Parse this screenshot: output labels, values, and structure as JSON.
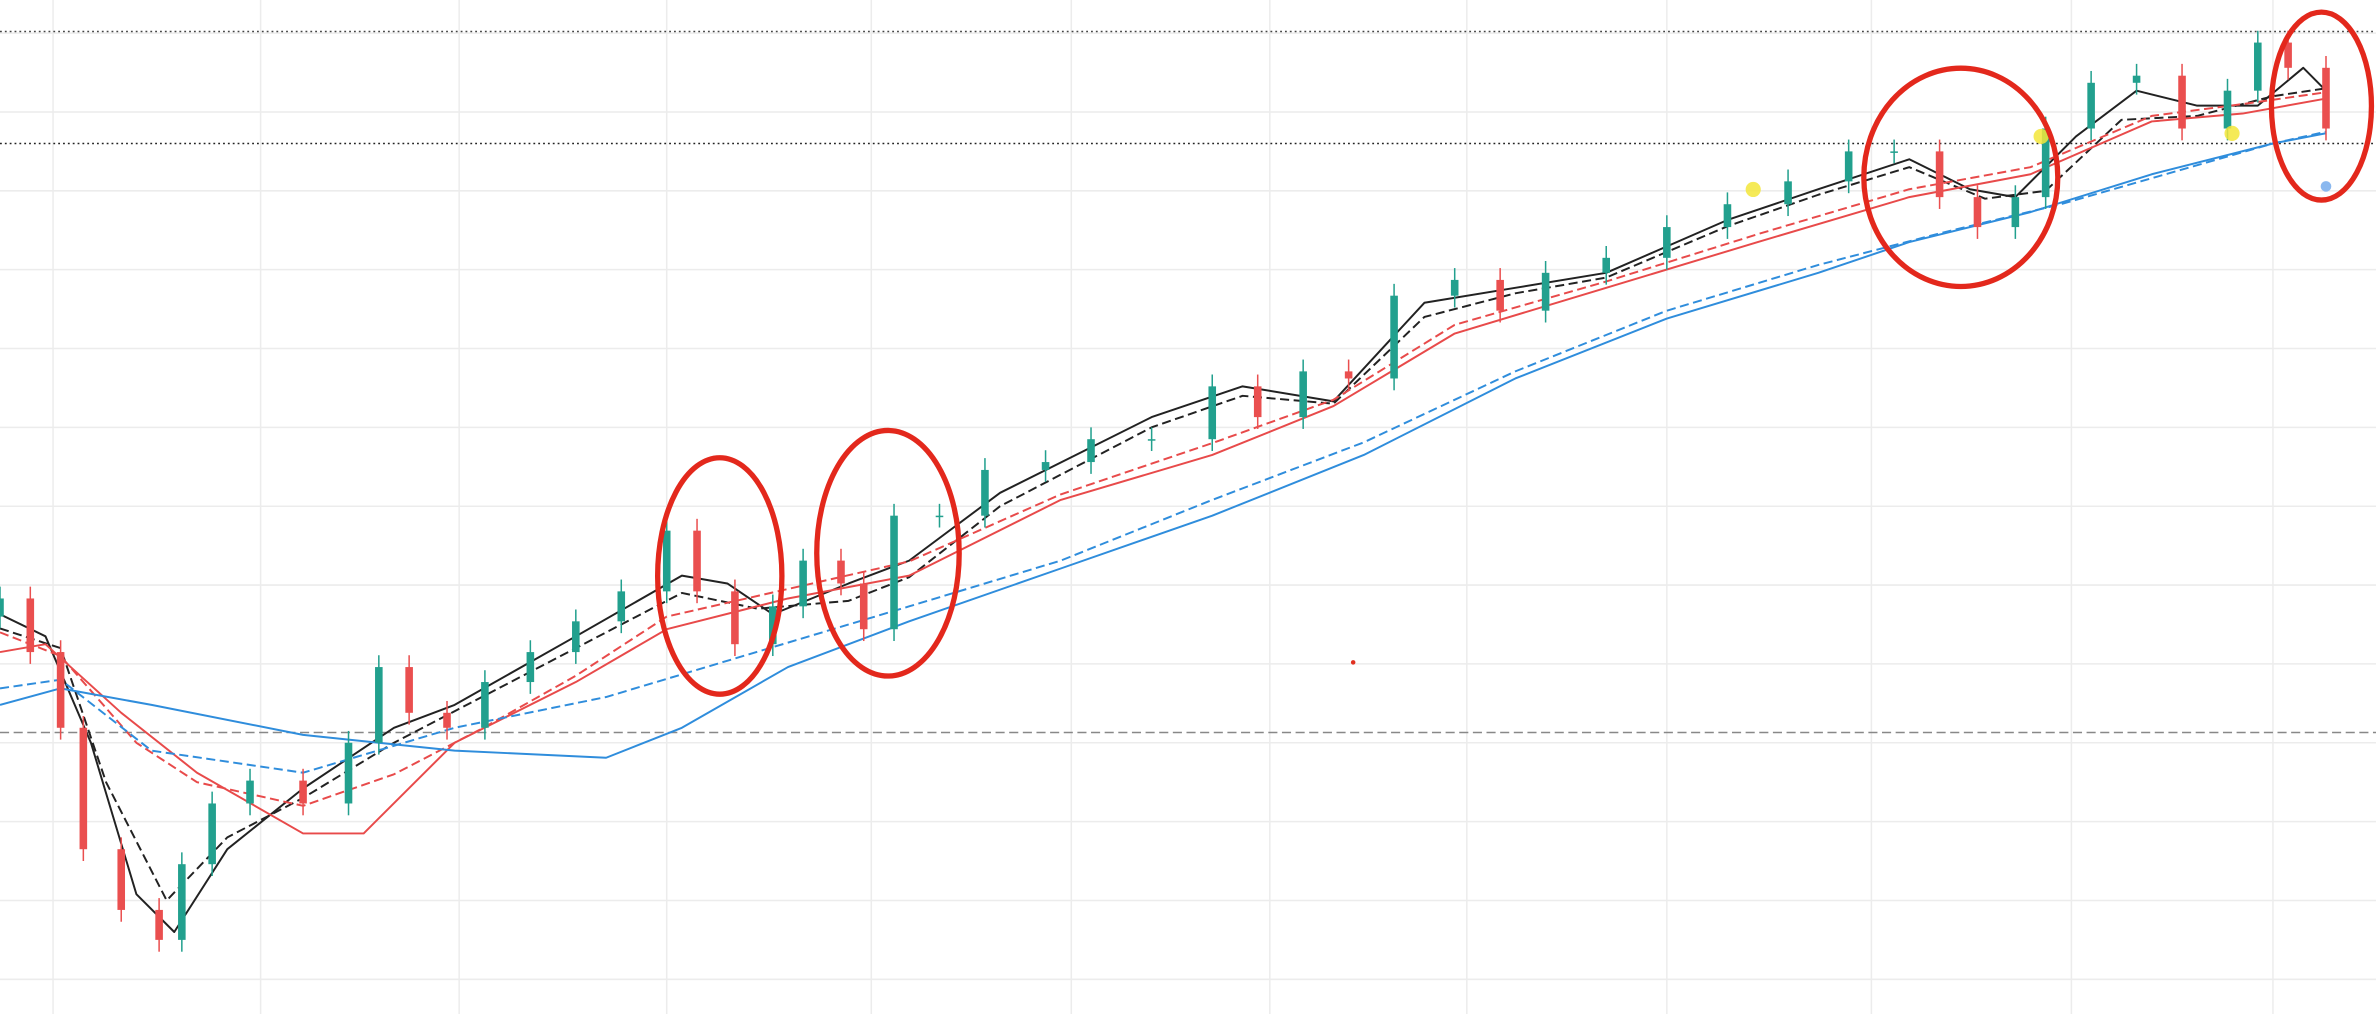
{
  "chart_data": {
    "type": "candlestick",
    "xlim": [
      0,
      1568
    ],
    "ylim": [
      -4.4,
      124.2
    ],
    "xticks": [
      35,
      172,
      303,
      440,
      575,
      707,
      838,
      968,
      1100,
      1235,
      1367,
      1500
    ],
    "yticks": [
      0,
      10,
      20,
      30,
      40,
      50,
      60,
      70,
      80,
      90,
      100,
      110,
      120
    ],
    "grid": true,
    "grid_color": "#ececec",
    "up_color": "#22a08e",
    "down_color": "#ea4f4f",
    "x": [
      0,
      20,
      40,
      55,
      80,
      105,
      120,
      140,
      165,
      200,
      230,
      250,
      270,
      295,
      320,
      350,
      380,
      410,
      440,
      460,
      485,
      510,
      530,
      555,
      570,
      590,
      620,
      650,
      690,
      720,
      760,
      800,
      830,
      860,
      890,
      920,
      960,
      990,
      1020,
      1060,
      1100,
      1140,
      1180,
      1220,
      1250,
      1280,
      1305,
      1330,
      1350,
      1380,
      1410,
      1440,
      1470,
      1490,
      1510,
      1535
    ],
    "open": [
      46,
      48.3,
      41.5,
      31.9,
      16.5,
      8.8,
      5,
      14.6,
      22.3,
      25.2,
      22.3,
      30,
      39.6,
      33.8,
      31.9,
      37.7,
      41.5,
      45.4,
      49.2,
      56.9,
      49.2,
      42.5,
      47.3,
      53.1,
      50.2,
      44.4,
      58.8,
      58.8,
      64.6,
      65.6,
      68.5,
      68.5,
      75.2,
      71.3,
      77.1,
      76.2,
      86.7,
      88.7,
      84.8,
      89.6,
      91.5,
      95.4,
      98.3,
      101.2,
      105,
      105,
      99.2,
      95.4,
      99.2,
      107.9,
      113.7,
      114.6,
      107.9,
      112.7,
      118.8,
      115.6
    ],
    "high": [
      49.8,
      49.8,
      43,
      33.4,
      18,
      10.3,
      16.1,
      23.8,
      26.7,
      26.7,
      31.5,
      41.1,
      41.1,
      35.3,
      39.2,
      43,
      46.9,
      50.7,
      58.4,
      58.4,
      50.7,
      48.8,
      54.6,
      54.6,
      51.7,
      60.3,
      60.3,
      66.1,
      67.1,
      70,
      70,
      76.7,
      76.7,
      78.6,
      78.6,
      88.2,
      90.2,
      90.2,
      91.1,
      93,
      96.9,
      99.8,
      102.7,
      106.5,
      106.5,
      106.5,
      100.7,
      100.7,
      109.4,
      115.2,
      116.1,
      116.1,
      114.2,
      120.3,
      120.3,
      117.1
    ],
    "low": [
      44.5,
      40,
      30.4,
      15,
      7.3,
      3.5,
      3.5,
      13.1,
      20.8,
      20.8,
      20.8,
      28.5,
      32.3,
      30.4,
      30.4,
      36.2,
      40,
      43.9,
      47.7,
      47.7,
      41,
      41,
      45.8,
      48.7,
      42.9,
      42.9,
      57.3,
      57.3,
      63.1,
      64.1,
      67,
      67,
      69.8,
      69.8,
      74.7,
      74.7,
      85.2,
      83.3,
      83.3,
      88.1,
      90,
      93.9,
      96.8,
      99.7,
      103.5,
      97.7,
      93.9,
      93.9,
      97.7,
      106.4,
      112.2,
      106.4,
      106.4,
      111.2,
      114.1,
      106.4
    ],
    "close": [
      48.3,
      41.5,
      31.9,
      16.5,
      8.8,
      5,
      14.6,
      22.3,
      25.2,
      22.3,
      30,
      39.6,
      33.8,
      31.9,
      37.7,
      41.5,
      45.4,
      49.2,
      56.9,
      49.2,
      42.5,
      47.3,
      53.1,
      50.2,
      44.4,
      58.8,
      58.8,
      64.6,
      65.6,
      68.5,
      68.5,
      75.2,
      71.3,
      77.1,
      76.2,
      86.7,
      88.7,
      84.8,
      89.6,
      91.5,
      95.4,
      98.3,
      101.2,
      105,
      105,
      99.2,
      95.4,
      99.2,
      107.9,
      113.7,
      114.6,
      107.9,
      112.7,
      118.8,
      115.6,
      107.9
    ],
    "series": [
      {
        "color": "#222222",
        "dash": "solid",
        "x": [
          0,
          30,
          60,
          90,
          115,
          150,
          200,
          260,
          300,
          380,
          450,
          480,
          510,
          560,
          600,
          660,
          760,
          820,
          880,
          940,
          1000,
          1060,
          1140,
          1200,
          1260,
          1300,
          1330,
          1370,
          1410,
          1450,
          1490,
          1520,
          1535
        ],
        "values": [
          46.3,
          43.5,
          30,
          10.8,
          6,
          16.5,
          24.2,
          31.9,
          34.8,
          43.5,
          51.2,
          50.2,
          46.3,
          50.2,
          53.1,
          61.7,
          71.3,
          75.2,
          73.3,
          85.8,
          87.7,
          89.6,
          96.3,
          100.2,
          104,
          100.2,
          99.2,
          106.9,
          112.7,
          110.8,
          110.8,
          115.6,
          112.7
        ]
      },
      {
        "color": "#222222",
        "dash": "dashed",
        "x": [
          0,
          40,
          70,
          110,
          150,
          200,
          260,
          300,
          380,
          450,
          500,
          560,
          600,
          660,
          760,
          820,
          880,
          940,
          1000,
          1060,
          1140,
          1200,
          1260,
          1310,
          1350,
          1400,
          1450,
          1500,
          1535
        ],
        "values": [
          44.5,
          42,
          25,
          10,
          18,
          23,
          30,
          34,
          42,
          49,
          47,
          48,
          51,
          60,
          70,
          74,
          73,
          84,
          87,
          89,
          95.5,
          99.5,
          103,
          99,
          100,
          109,
          109.5,
          112,
          113
        ]
      },
      {
        "color": "#e84a4a",
        "dash": "solid",
        "x": [
          0,
          30,
          80,
          130,
          200,
          240,
          300,
          380,
          440,
          520,
          600,
          700,
          800,
          880,
          960,
          1060,
          1160,
          1260,
          1340,
          1420,
          1480,
          1535
        ],
        "values": [
          41.5,
          42.5,
          33.8,
          26.2,
          18.5,
          18.5,
          30,
          37.7,
          44.4,
          48.3,
          51.2,
          60.8,
          66.5,
          72.7,
          81.9,
          87.7,
          93.5,
          99.2,
          102.1,
          108.8,
          109.8,
          111.7
        ]
      },
      {
        "color": "#e84a4a",
        "dash": "dashed",
        "x": [
          0,
          40,
          90,
          130,
          200,
          260,
          320,
          380,
          440,
          520,
          600,
          700,
          800,
          880,
          960,
          1060,
          1160,
          1260,
          1340,
          1420,
          1480,
          1535
        ],
        "values": [
          44,
          41,
          30,
          25,
          22,
          26,
          32,
          38.5,
          46,
          49.5,
          53,
          61.5,
          68,
          73.5,
          83,
          88.5,
          94.5,
          100.2,
          103,
          109.5,
          111,
          112.5
        ]
      },
      {
        "color": "#2f8ddc",
        "dash": "solid",
        "x": [
          0,
          40,
          100,
          200,
          300,
          400,
          450,
          520,
          600,
          700,
          800,
          900,
          1000,
          1100,
          1200,
          1260,
          1340,
          1420,
          1500,
          1535
        ],
        "values": [
          34.8,
          36.9,
          34.8,
          31,
          29,
          28.1,
          31.9,
          39.6,
          45.4,
          52.1,
          58.8,
          66.5,
          76.2,
          83.8,
          89.6,
          93.5,
          97.3,
          102.1,
          106,
          107.3
        ]
      },
      {
        "color": "#2f8ddc",
        "dash": "dashed",
        "x": [
          0,
          40,
          100,
          200,
          300,
          400,
          520,
          600,
          700,
          800,
          900,
          1000,
          1100,
          1200,
          1280,
          1360,
          1440,
          1500,
          1535
        ],
        "values": [
          36.9,
          38,
          29,
          26.2,
          31.9,
          35.8,
          42.7,
          47.3,
          53.1,
          60.8,
          68.1,
          77.1,
          84.8,
          90.6,
          94.6,
          98.3,
          102.7,
          106,
          107.5
        ]
      }
    ],
    "hlines": [
      {
        "value": 120.2,
        "color": "#444444",
        "dash": "dotted"
      },
      {
        "value": 106,
        "color": "#222222",
        "dash": "dotted"
      },
      {
        "value": 31.3,
        "color": "#888888",
        "dash": "dashed"
      }
    ]
  }
}
